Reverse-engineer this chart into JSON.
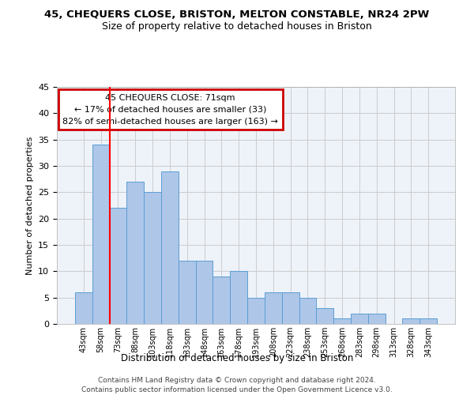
{
  "title": "45, CHEQUERS CLOSE, BRISTON, MELTON CONSTABLE, NR24 2PW",
  "subtitle": "Size of property relative to detached houses in Briston",
  "xlabel": "Distribution of detached houses by size in Briston",
  "ylabel": "Number of detached properties",
  "bar_values": [
    6,
    34,
    22,
    27,
    25,
    29,
    12,
    12,
    9,
    10,
    5,
    6,
    6,
    5,
    3,
    1,
    2,
    2,
    0,
    1,
    1
  ],
  "bin_labels": [
    "43sqm",
    "58sqm",
    "73sqm",
    "88sqm",
    "103sqm",
    "118sqm",
    "133sqm",
    "148sqm",
    "163sqm",
    "178sqm",
    "193sqm",
    "208sqm",
    "223sqm",
    "238sqm",
    "253sqm",
    "268sqm",
    "283sqm",
    "298sqm",
    "313sqm",
    "328sqm",
    "343sqm"
  ],
  "bar_color": "#aec6e8",
  "bar_edge_color": "#5a9fd4",
  "annotation_box_text": "45 CHEQUERS CLOSE: 71sqm\n← 17% of detached houses are smaller (33)\n82% of semi-detached houses are larger (163) →",
  "annotation_box_color": "#cc0000",
  "red_line_x": 1.5,
  "ylim": [
    0,
    45
  ],
  "yticks": [
    0,
    5,
    10,
    15,
    20,
    25,
    30,
    35,
    40,
    45
  ],
  "grid_color": "#cccccc",
  "bg_color": "#eef2f9",
  "footer_line1": "Contains HM Land Registry data © Crown copyright and database right 2024.",
  "footer_line2": "Contains public sector information licensed under the Open Government Licence v3.0."
}
